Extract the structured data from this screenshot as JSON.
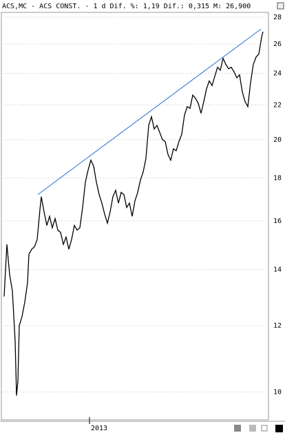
{
  "chart_data": {
    "type": "line",
    "title": "ACS,MC - ACS CONST. -  1 d Dif. %: 1,19 Dif.: 0,315 M: 26,900",
    "log_scale": true,
    "grid": true,
    "x": [
      4,
      8,
      12,
      16,
      20,
      22,
      24,
      26,
      30,
      34,
      38,
      40,
      44,
      48,
      52,
      56,
      58,
      62,
      66,
      70,
      74,
      78,
      82,
      86,
      90,
      94,
      98,
      102,
      106,
      110,
      114,
      118,
      122,
      126,
      130,
      134,
      138,
      142,
      146,
      150,
      154,
      158,
      162,
      166,
      170,
      174,
      178,
      182,
      186,
      190,
      194,
      198,
      202,
      206,
      210,
      214,
      218,
      222,
      226,
      230,
      234,
      238,
      242,
      246,
      250,
      254,
      258,
      262,
      266,
      270,
      274,
      278,
      282,
      286,
      290,
      294,
      298,
      302,
      306,
      310,
      314,
      318,
      322,
      326,
      330,
      334,
      338,
      342,
      346,
      350,
      354,
      358,
      362,
      366,
      370,
      374,
      378,
      380
    ],
    "series": [
      {
        "color": "#000000",
        "values": [
          13.0,
          15.0,
          13.8,
          13.2,
          11.5,
          9.9,
          10.3,
          12.0,
          12.3,
          12.8,
          13.5,
          14.6,
          14.8,
          14.9,
          15.2,
          16.5,
          17.1,
          16.4,
          15.8,
          16.2,
          15.7,
          16.1,
          15.6,
          15.5,
          15.0,
          15.3,
          14.8,
          15.2,
          15.8,
          15.6,
          15.7,
          16.6,
          17.8,
          18.4,
          18.9,
          18.6,
          17.8,
          17.2,
          16.8,
          16.3,
          15.9,
          16.4,
          17.1,
          17.4,
          16.8,
          17.3,
          17.2,
          16.6,
          16.8,
          16.2,
          16.9,
          17.3,
          17.9,
          18.3,
          19.0,
          20.8,
          21.3,
          20.6,
          20.8,
          20.4,
          20.0,
          19.9,
          19.2,
          18.9,
          19.5,
          19.4,
          19.9,
          20.3,
          21.4,
          21.9,
          21.8,
          22.6,
          22.4,
          22.1,
          21.5,
          22.2,
          23.0,
          23.5,
          23.2,
          23.8,
          24.4,
          24.2,
          25.0,
          24.6,
          24.3,
          24.4,
          24.1,
          23.7,
          23.9,
          22.8,
          22.2,
          21.9,
          23.4,
          24.6,
          25.1,
          25.3,
          26.5,
          26.9
        ]
      }
    ],
    "trend_line": {
      "x": [
        53,
        377
      ],
      "values": [
        17.2,
        27.1
      ],
      "color": "#1e6fd0"
    },
    "xlim": [
      0,
      388
    ],
    "xticks": [
      {
        "value": 128,
        "label": "2013"
      }
    ],
    "ylim": [
      9.26,
      28.37
    ],
    "yticks": [
      10,
      12,
      14,
      16,
      18,
      20,
      22,
      24,
      26,
      28
    ]
  }
}
